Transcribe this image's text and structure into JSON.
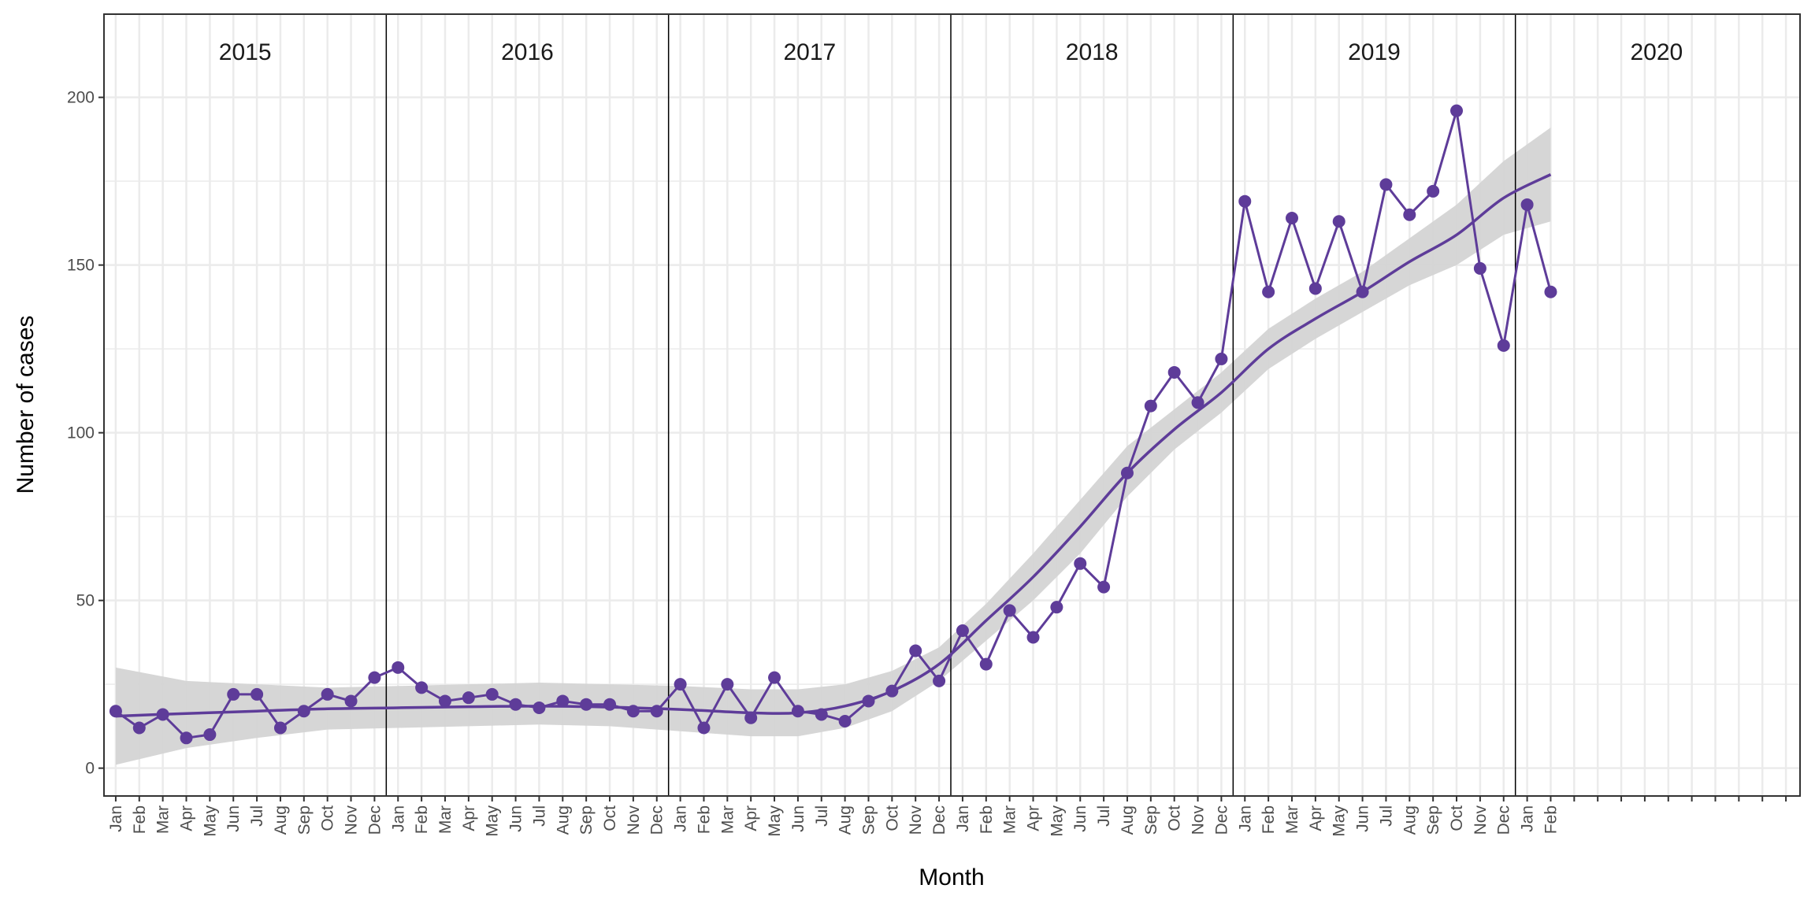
{
  "chart_data": {
    "type": "line",
    "title": "",
    "xlabel": "Month",
    "ylabel": "Number of cases",
    "ylim": [
      -8.3,
      224.8
    ],
    "y_ticks": [
      0,
      50,
      100,
      150,
      200
    ],
    "grid": true,
    "colors": {
      "series": "#5E3C99",
      "ribbon": "#D4D4D4",
      "grid": "#EBEBEB",
      "separator": "#000000"
    },
    "years": [
      "2015",
      "2016",
      "2017",
      "2018",
      "2019",
      "2020"
    ],
    "month_labels": [
      "Jan",
      "Feb",
      "Mar",
      "Apr",
      "May",
      "Jun",
      "Jul",
      "Aug",
      "Sep",
      "Oct",
      "Nov",
      "Dec"
    ],
    "series": [
      {
        "values": [
          17,
          12,
          16,
          9,
          10,
          22,
          22,
          12,
          17,
          22,
          20,
          27,
          30,
          24,
          20,
          21,
          22,
          19,
          18,
          20,
          19,
          19,
          17,
          17,
          25,
          12,
          25,
          15,
          27,
          17,
          16,
          14,
          20,
          23,
          35,
          26,
          41,
          31,
          47,
          39,
          48,
          61,
          54,
          88,
          108,
          118,
          109,
          122,
          169,
          142,
          164,
          143,
          163,
          142,
          174,
          165,
          172,
          196,
          149,
          126,
          168,
          142
        ]
      }
    ],
    "smooth": {
      "month_index": [
        0,
        3,
        6,
        9,
        12,
        15,
        18,
        21,
        24,
        27,
        29,
        31,
        33,
        35,
        37,
        39,
        41,
        43,
        45,
        47,
        49,
        51,
        53,
        55,
        57,
        59,
        61
      ],
      "fit": [
        15.5,
        16.3,
        17,
        17.7,
        18,
        18.3,
        18.5,
        18.2,
        17.5,
        16.5,
        16.5,
        18.5,
        23,
        31,
        44,
        57,
        72,
        88,
        101,
        112,
        125,
        134,
        142,
        151,
        159,
        170,
        177
      ],
      "lower": [
        1,
        6,
        9,
        11.5,
        12,
        12.5,
        13,
        12.5,
        11,
        9.5,
        9.5,
        12,
        17,
        26,
        38,
        50,
        64,
        81,
        95,
        106,
        119,
        128,
        136,
        144,
        150,
        159,
        163
      ],
      "upper": [
        30,
        26,
        25,
        24,
        24.5,
        25,
        25.5,
        25,
        24.5,
        23.5,
        23.5,
        25,
        29,
        36,
        49,
        64,
        80,
        96,
        107,
        118,
        131,
        140,
        148,
        158,
        168,
        181,
        191
      ]
    }
  }
}
